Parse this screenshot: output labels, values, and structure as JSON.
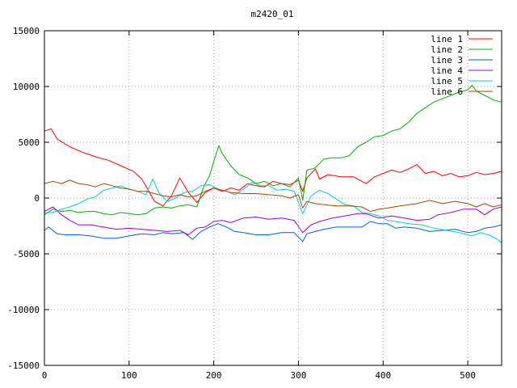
{
  "chart_data": {
    "type": "line",
    "title": "m2420_01",
    "xlabel": "",
    "ylabel": "",
    "xlim": [
      0,
      540
    ],
    "ylim": [
      -15000,
      15000
    ],
    "xticks": [
      0,
      100,
      200,
      300,
      400,
      500
    ],
    "yticks": [
      -15000,
      -10000,
      -5000,
      0,
      5000,
      10000,
      15000
    ],
    "grid": true,
    "legend_position": "top-right",
    "series": [
      {
        "name": "line 1",
        "color": "#ff0000",
        "points": [
          [
            0,
            6000
          ],
          [
            8,
            6200
          ],
          [
            15,
            5300
          ],
          [
            30,
            4600
          ],
          [
            45,
            4100
          ],
          [
            60,
            3700
          ],
          [
            75,
            3400
          ],
          [
            90,
            2900
          ],
          [
            105,
            2400
          ],
          [
            115,
            1700
          ],
          [
            122,
            800
          ],
          [
            130,
            -300
          ],
          [
            140,
            -700
          ],
          [
            150,
            200
          ],
          [
            160,
            1800
          ],
          [
            170,
            500
          ],
          [
            180,
            -400
          ],
          [
            190,
            500
          ],
          [
            200,
            900
          ],
          [
            210,
            600
          ],
          [
            220,
            900
          ],
          [
            230,
            700
          ],
          [
            240,
            1300
          ],
          [
            250,
            1100
          ],
          [
            260,
            1000
          ],
          [
            270,
            1500
          ],
          [
            280,
            1300
          ],
          [
            290,
            1200
          ],
          [
            300,
            1600
          ],
          [
            305,
            600
          ],
          [
            310,
            1800
          ],
          [
            320,
            2600
          ],
          [
            325,
            1700
          ],
          [
            335,
            2100
          ],
          [
            350,
            1900
          ],
          [
            365,
            1900
          ],
          [
            380,
            1300
          ],
          [
            390,
            1900
          ],
          [
            400,
            2200
          ],
          [
            410,
            2500
          ],
          [
            420,
            2300
          ],
          [
            430,
            2600
          ],
          [
            440,
            3000
          ],
          [
            450,
            2200
          ],
          [
            460,
            2400
          ],
          [
            470,
            2000
          ],
          [
            480,
            2200
          ],
          [
            490,
            1900
          ],
          [
            500,
            2000
          ],
          [
            510,
            2300
          ],
          [
            520,
            2100
          ],
          [
            530,
            2200
          ],
          [
            540,
            2400
          ]
        ]
      },
      {
        "name": "line 2",
        "color": "#00b000",
        "points": [
          [
            0,
            -1500
          ],
          [
            10,
            -1000
          ],
          [
            20,
            -1200
          ],
          [
            30,
            -1100
          ],
          [
            40,
            -1300
          ],
          [
            50,
            -1200
          ],
          [
            60,
            -1200
          ],
          [
            70,
            -1400
          ],
          [
            80,
            -1500
          ],
          [
            90,
            -1300
          ],
          [
            100,
            -1400
          ],
          [
            110,
            -1500
          ],
          [
            120,
            -1400
          ],
          [
            130,
            -900
          ],
          [
            140,
            -800
          ],
          [
            150,
            -900
          ],
          [
            160,
            -700
          ],
          [
            170,
            -600
          ],
          [
            180,
            -800
          ],
          [
            188,
            1000
          ],
          [
            195,
            2000
          ],
          [
            200,
            3300
          ],
          [
            206,
            4700
          ],
          [
            210,
            4000
          ],
          [
            220,
            2900
          ],
          [
            230,
            2100
          ],
          [
            240,
            1800
          ],
          [
            250,
            1300
          ],
          [
            260,
            1500
          ],
          [
            270,
            1100
          ],
          [
            280,
            1300
          ],
          [
            290,
            1000
          ],
          [
            300,
            1800
          ],
          [
            305,
            -200
          ],
          [
            310,
            2500
          ],
          [
            320,
            2700
          ],
          [
            330,
            3500
          ],
          [
            340,
            3600
          ],
          [
            350,
            3600
          ],
          [
            360,
            3800
          ],
          [
            370,
            4600
          ],
          [
            380,
            5000
          ],
          [
            390,
            5500
          ],
          [
            400,
            5600
          ],
          [
            410,
            6000
          ],
          [
            420,
            6200
          ],
          [
            430,
            6800
          ],
          [
            440,
            7600
          ],
          [
            450,
            8100
          ],
          [
            460,
            8600
          ],
          [
            470,
            8900
          ],
          [
            480,
            9200
          ],
          [
            490,
            9500
          ],
          [
            500,
            9700
          ],
          [
            505,
            10100
          ],
          [
            510,
            9600
          ],
          [
            520,
            9200
          ],
          [
            530,
            8800
          ],
          [
            540,
            8600
          ]
        ]
      },
      {
        "name": "line 3",
        "color": "#0060d0",
        "points": [
          [
            0,
            -2900
          ],
          [
            5,
            -2600
          ],
          [
            15,
            -3200
          ],
          [
            25,
            -3300
          ],
          [
            40,
            -3300
          ],
          [
            55,
            -3400
          ],
          [
            70,
            -3600
          ],
          [
            85,
            -3600
          ],
          [
            100,
            -3400
          ],
          [
            115,
            -3200
          ],
          [
            130,
            -3300
          ],
          [
            140,
            -3100
          ],
          [
            150,
            -3200
          ],
          [
            165,
            -3100
          ],
          [
            175,
            -3700
          ],
          [
            185,
            -3000
          ],
          [
            195,
            -2600
          ],
          [
            205,
            -2300
          ],
          [
            215,
            -2600
          ],
          [
            225,
            -3000
          ],
          [
            235,
            -3100
          ],
          [
            250,
            -3300
          ],
          [
            265,
            -3300
          ],
          [
            280,
            -3100
          ],
          [
            295,
            -3100
          ],
          [
            305,
            -3900
          ],
          [
            310,
            -3200
          ],
          [
            320,
            -3000
          ],
          [
            330,
            -2800
          ],
          [
            345,
            -2600
          ],
          [
            360,
            -2600
          ],
          [
            375,
            -2600
          ],
          [
            385,
            -2100
          ],
          [
            395,
            -2300
          ],
          [
            405,
            -2300
          ],
          [
            415,
            -2700
          ],
          [
            425,
            -2600
          ],
          [
            440,
            -2700
          ],
          [
            455,
            -3000
          ],
          [
            470,
            -2900
          ],
          [
            485,
            -2800
          ],
          [
            500,
            -3100
          ],
          [
            510,
            -3000
          ],
          [
            520,
            -2700
          ],
          [
            530,
            -2600
          ],
          [
            540,
            -2400
          ]
        ]
      },
      {
        "name": "line 4",
        "color": "#a000d0",
        "points": [
          [
            0,
            -1200
          ],
          [
            10,
            -800
          ],
          [
            20,
            -1500
          ],
          [
            30,
            -2000
          ],
          [
            40,
            -2400
          ],
          [
            55,
            -2400
          ],
          [
            70,
            -2600
          ],
          [
            85,
            -2800
          ],
          [
            100,
            -2700
          ],
          [
            115,
            -2800
          ],
          [
            130,
            -2900
          ],
          [
            145,
            -3000
          ],
          [
            160,
            -2900
          ],
          [
            170,
            -3300
          ],
          [
            180,
            -2700
          ],
          [
            190,
            -2600
          ],
          [
            200,
            -2100
          ],
          [
            210,
            -2000
          ],
          [
            220,
            -2200
          ],
          [
            235,
            -1800
          ],
          [
            250,
            -1700
          ],
          [
            265,
            -1900
          ],
          [
            280,
            -1800
          ],
          [
            295,
            -2000
          ],
          [
            305,
            -3100
          ],
          [
            315,
            -2400
          ],
          [
            325,
            -2100
          ],
          [
            340,
            -1800
          ],
          [
            355,
            -1600
          ],
          [
            370,
            -1400
          ],
          [
            380,
            -1400
          ],
          [
            395,
            -1800
          ],
          [
            410,
            -1600
          ],
          [
            425,
            -1800
          ],
          [
            440,
            -2000
          ],
          [
            455,
            -1900
          ],
          [
            465,
            -1500
          ],
          [
            480,
            -1300
          ],
          [
            495,
            -1000
          ],
          [
            510,
            -1000
          ],
          [
            520,
            -1500
          ],
          [
            530,
            -1000
          ],
          [
            540,
            -800
          ]
        ]
      },
      {
        "name": "line 5",
        "color": "#00d0d0",
        "points": [
          [
            0,
            -1300
          ],
          [
            10,
            -1300
          ],
          [
            20,
            -1000
          ],
          [
            30,
            -800
          ],
          [
            40,
            -500
          ],
          [
            50,
            -100
          ],
          [
            60,
            100
          ],
          [
            70,
            700
          ],
          [
            80,
            900
          ],
          [
            90,
            1100
          ],
          [
            100,
            800
          ],
          [
            110,
            600
          ],
          [
            120,
            300
          ],
          [
            128,
            1700
          ],
          [
            135,
            500
          ],
          [
            145,
            -300
          ],
          [
            155,
            0
          ],
          [
            165,
            500
          ],
          [
            175,
            600
          ],
          [
            185,
            1100
          ],
          [
            195,
            1200
          ],
          [
            205,
            800
          ],
          [
            215,
            600
          ],
          [
            225,
            300
          ],
          [
            235,
            800
          ],
          [
            245,
            1400
          ],
          [
            255,
            1100
          ],
          [
            265,
            1100
          ],
          [
            275,
            700
          ],
          [
            285,
            800
          ],
          [
            295,
            600
          ],
          [
            305,
            -1400
          ],
          [
            315,
            200
          ],
          [
            325,
            700
          ],
          [
            335,
            400
          ],
          [
            345,
            -100
          ],
          [
            355,
            -600
          ],
          [
            365,
            -700
          ],
          [
            375,
            -1300
          ],
          [
            385,
            -1400
          ],
          [
            395,
            -1600
          ],
          [
            405,
            -2000
          ],
          [
            415,
            -2100
          ],
          [
            430,
            -2300
          ],
          [
            445,
            -2400
          ],
          [
            460,
            -2700
          ],
          [
            475,
            -2900
          ],
          [
            490,
            -3100
          ],
          [
            505,
            -3400
          ],
          [
            515,
            -3100
          ],
          [
            525,
            -3300
          ],
          [
            535,
            -3700
          ],
          [
            540,
            -4000
          ]
        ]
      },
      {
        "name": "line 6",
        "color": "#b04000",
        "points": [
          [
            0,
            1300
          ],
          [
            10,
            1500
          ],
          [
            20,
            1300
          ],
          [
            30,
            1600
          ],
          [
            40,
            1300
          ],
          [
            50,
            1200
          ],
          [
            60,
            1000
          ],
          [
            70,
            1300
          ],
          [
            80,
            1100
          ],
          [
            90,
            900
          ],
          [
            100,
            800
          ],
          [
            110,
            600
          ],
          [
            120,
            600
          ],
          [
            130,
            400
          ],
          [
            140,
            200
          ],
          [
            150,
            100
          ],
          [
            160,
            300
          ],
          [
            170,
            100
          ],
          [
            180,
            200
          ],
          [
            190,
            600
          ],
          [
            200,
            900
          ],
          [
            210,
            700
          ],
          [
            220,
            500
          ],
          [
            235,
            400
          ],
          [
            250,
            400
          ],
          [
            265,
            300
          ],
          [
            280,
            200
          ],
          [
            290,
            0
          ],
          [
            300,
            300
          ],
          [
            305,
            -900
          ],
          [
            310,
            -300
          ],
          [
            320,
            -500
          ],
          [
            330,
            -600
          ],
          [
            345,
            -700
          ],
          [
            360,
            -700
          ],
          [
            375,
            -800
          ],
          [
            385,
            -1200
          ],
          [
            395,
            -1000
          ],
          [
            405,
            -900
          ],
          [
            420,
            -700
          ],
          [
            440,
            -500
          ],
          [
            455,
            -200
          ],
          [
            470,
            -500
          ],
          [
            485,
            -300
          ],
          [
            500,
            -500
          ],
          [
            510,
            -800
          ],
          [
            520,
            -500
          ],
          [
            530,
            -800
          ],
          [
            540,
            -600
          ]
        ]
      }
    ]
  }
}
